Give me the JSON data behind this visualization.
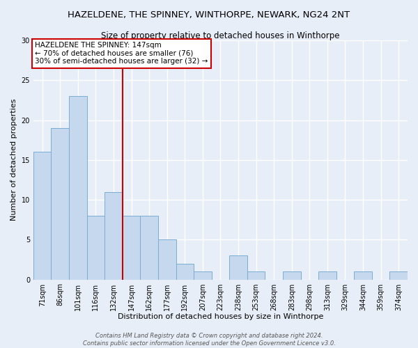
{
  "title": "HAZELDENE, THE SPINNEY, WINTHORPE, NEWARK, NG24 2NT",
  "subtitle": "Size of property relative to detached houses in Winthorpe",
  "xlabel": "Distribution of detached houses by size in Winthorpe",
  "ylabel": "Number of detached properties",
  "bar_labels": [
    "71sqm",
    "86sqm",
    "101sqm",
    "116sqm",
    "132sqm",
    "147sqm",
    "162sqm",
    "177sqm",
    "192sqm",
    "207sqm",
    "223sqm",
    "238sqm",
    "253sqm",
    "268sqm",
    "283sqm",
    "298sqm",
    "313sqm",
    "329sqm",
    "344sqm",
    "359sqm",
    "374sqm"
  ],
  "bar_values": [
    16,
    19,
    23,
    8,
    11,
    8,
    8,
    5,
    2,
    1,
    0,
    3,
    1,
    0,
    1,
    0,
    1,
    0,
    1,
    0,
    1
  ],
  "bar_color": "#c5d8ed",
  "bar_edge_color": "#7aadd4",
  "bar_edge_width": 0.7,
  "ylim": [
    0,
    30
  ],
  "yticks": [
    0,
    5,
    10,
    15,
    20,
    25,
    30
  ],
  "vline_x_index": 5,
  "vline_color": "#cc0000",
  "annotation_line1": "HAZELDENE THE SPINNEY: 147sqm",
  "annotation_line2": "← 70% of detached houses are smaller (76)",
  "annotation_line3": "30% of semi-detached houses are larger (32) →",
  "annotation_box_color": "#ffffff",
  "annotation_box_edge_color": "#cc0000",
  "footer_line1": "Contains HM Land Registry data © Crown copyright and database right 2024.",
  "footer_line2": "Contains public sector information licensed under the Open Government Licence v3.0.",
  "background_color": "#e8eef8",
  "grid_color": "#ffffff",
  "title_fontsize": 9.5,
  "subtitle_fontsize": 8.5,
  "axis_label_fontsize": 8,
  "tick_fontsize": 7,
  "annotation_fontsize": 7.5,
  "footer_fontsize": 6
}
